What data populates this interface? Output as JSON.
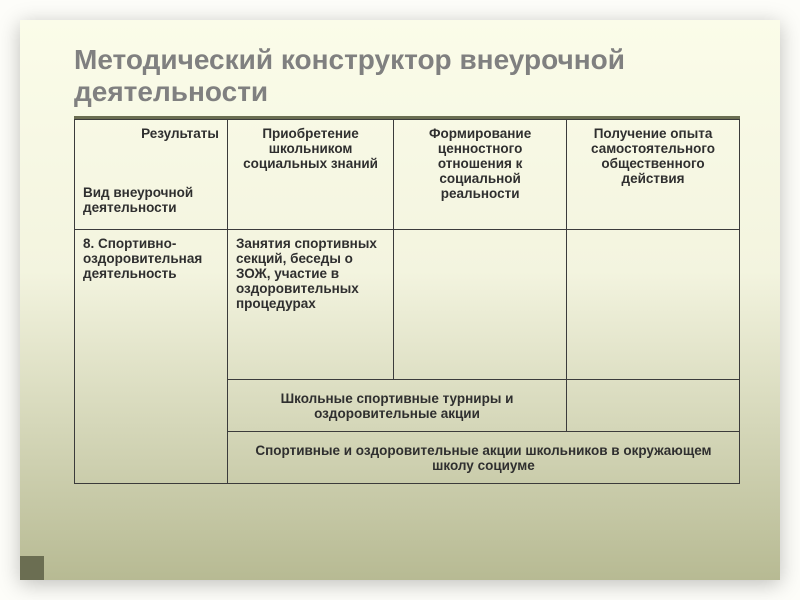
{
  "colors": {
    "slide_bg_top": "#fbfce9",
    "slide_bg_bottom": "#b7ba93",
    "title_color": "#808080",
    "rule_color": "#909476",
    "border_color": "#3b3b3b",
    "corner_accent": "#6b6e52"
  },
  "title": "Методический конструктор внеурочной деятельности",
  "header": {
    "results_label": "Результаты",
    "activity_label": "Вид внеурочной деятельности",
    "col2": "Приобретение школьником социальных знаний",
    "col3": "Формирование ценностного отношения к социальной реальности",
    "col4": "Получение опыта самостоятельного общественного действия"
  },
  "rows": {
    "r1c1": "8. Спортивно-оздоровительная деятельность",
    "r1c2": "Занятия спортивных секций, беседы о ЗОЖ, участие в оздоровительных процедурах",
    "r1c3": "",
    "r1c4": "",
    "r2merged": "Школьные спортивные турниры и оздоровительные акции",
    "r2c4": "",
    "r3merged": "Спортивные и оздоровительные акции школьников в окружающем школу социуме"
  },
  "layout": {
    "col_widths_pct": [
      23,
      25,
      26,
      26
    ],
    "font_size_pt": 13.5,
    "font_weight": "bold"
  }
}
